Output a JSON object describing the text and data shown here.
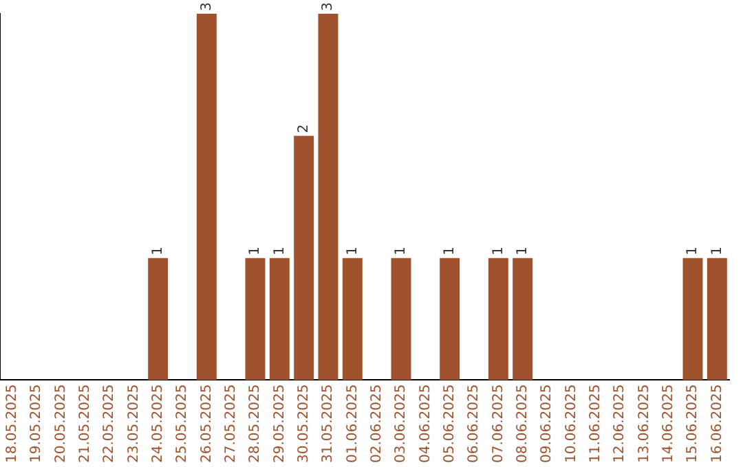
{
  "chart_data": {
    "type": "bar",
    "categories": [
      "18.05.2025",
      "19.05.2025",
      "20.05.2025",
      "21.05.2025",
      "22.05.2025",
      "23.05.2025",
      "24.05.2025",
      "25.05.2025",
      "26.05.2025",
      "27.05.2025",
      "28.05.2025",
      "29.05.2025",
      "30.05.2025",
      "31.05.2025",
      "01.06.2025",
      "02.06.2025",
      "03.06.2025",
      "04.06.2025",
      "05.06.2025",
      "06.06.2025",
      "07.06.2025",
      "08.06.2025",
      "09.06.2025",
      "10.06.2025",
      "11.06.2025",
      "12.06.2025",
      "13.06.2025",
      "14.06.2025",
      "15.06.2025",
      "16.06.2025"
    ],
    "values": [
      0,
      0,
      0,
      0,
      0,
      0,
      1,
      0,
      3,
      0,
      1,
      1,
      2,
      3,
      1,
      0,
      1,
      0,
      1,
      0,
      1,
      1,
      0,
      0,
      0,
      0,
      0,
      0,
      1,
      1
    ],
    "value_labels": [
      null,
      null,
      null,
      null,
      null,
      null,
      "1",
      null,
      "3",
      null,
      "1",
      "1",
      "2",
      "3",
      "1",
      null,
      "1",
      null,
      "1",
      null,
      "1",
      "1",
      null,
      null,
      null,
      null,
      null,
      null,
      "1",
      "1"
    ],
    "color": "#a0522d",
    "grid": false,
    "legend": false
  }
}
